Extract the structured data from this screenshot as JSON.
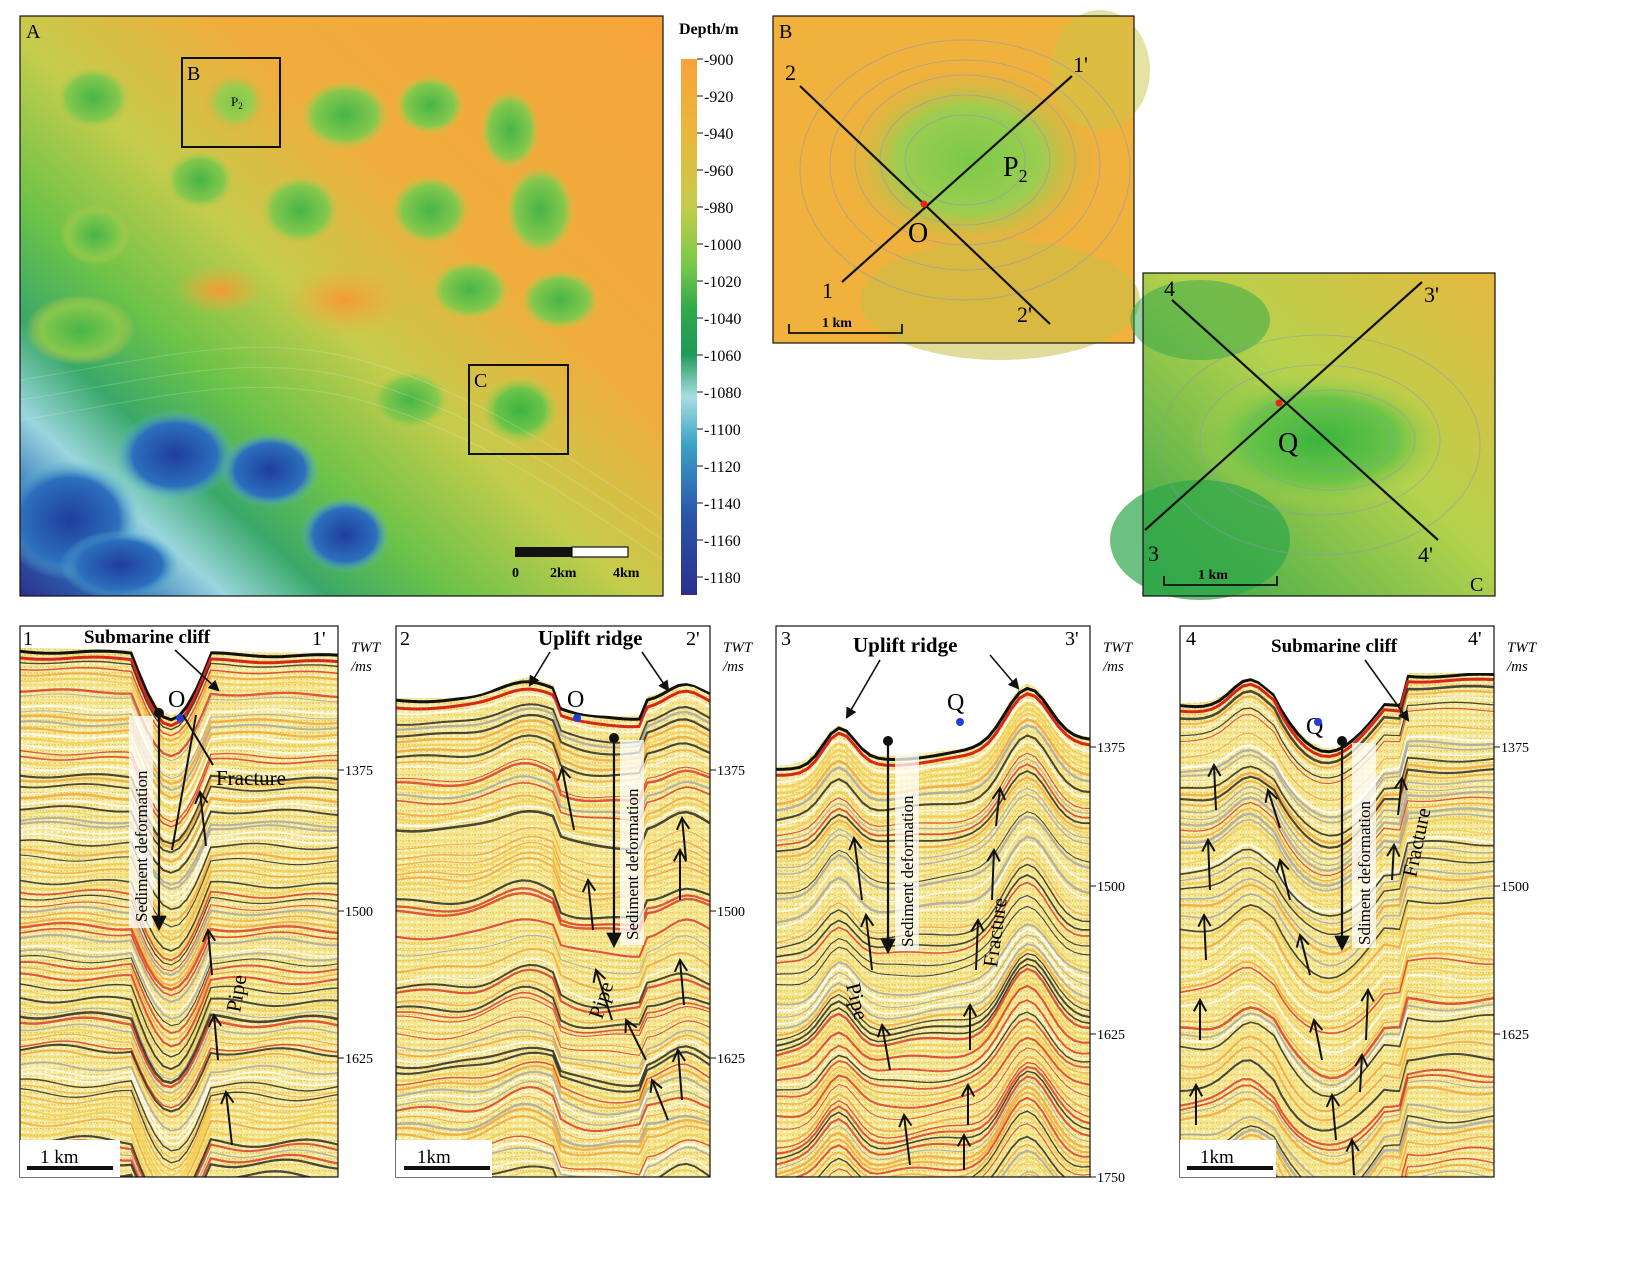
{
  "panel_a": {
    "letter": "A",
    "box_b_label": "B",
    "box_c_label": "C",
    "pockmark_label": "P",
    "pockmark_sub": "2",
    "scale_labels": [
      "0",
      "2km",
      "4km"
    ]
  },
  "colorbar": {
    "title": "Depth/m",
    "ticks": [
      "-900",
      "-920",
      "-940",
      "-960",
      "-980",
      "-1000",
      "-1020",
      "-1040",
      "-1060",
      "-1080",
      "-1100",
      "-1120",
      "-1140",
      "-1160",
      "-1180"
    ],
    "colors": [
      "#f6a43a",
      "#f2ad3b",
      "#e8b83e",
      "#d8c245",
      "#c2cc4a",
      "#a4d04e",
      "#7cc94a",
      "#4fbb44",
      "#2fa84a",
      "#33a78a",
      "#59b9c4",
      "#3aa3c6",
      "#2d7fc0",
      "#2a55ab",
      "#2b2f8e"
    ]
  },
  "panel_b": {
    "letter": "B",
    "line_labels": [
      "1",
      "1'",
      "2",
      "2'"
    ],
    "center": "O",
    "pockmark_label": "P",
    "pockmark_sub": "2",
    "scale_label": "1 km"
  },
  "panel_c": {
    "letter": "C",
    "line_labels": [
      "3",
      "3'",
      "4",
      "4'"
    ],
    "center": "Q",
    "scale_label": "1 km"
  },
  "profiles": [
    {
      "start": "1",
      "end": "1'",
      "point": "O",
      "title": "Submarine cliff",
      "labels": [
        "Fracture",
        "Pipe"
      ],
      "deformation": "Sediment deformation",
      "twt": [
        "1375",
        "1500",
        "1625"
      ],
      "scale": "1 km"
    },
    {
      "start": "2",
      "end": "2'",
      "point": "O",
      "title": "Uplift ridge",
      "labels": [
        "Pipe"
      ],
      "deformation": "Sediment deformation",
      "twt": [
        "1375",
        "1500",
        "1625"
      ],
      "scale": "1km"
    },
    {
      "start": "3",
      "end": "3'",
      "point": "Q",
      "title": "Uplift ridge",
      "labels": [
        "Fracture",
        "Pipe"
      ],
      "deformation": "Sediment deformation",
      "twt": [
        "1375",
        "1500",
        "1625",
        "1750"
      ],
      "scale": "1km"
    },
    {
      "start": "4",
      "end": "4'",
      "point": "Q",
      "title": "Submarine cliff",
      "labels": [
        "Fracture"
      ],
      "deformation": "Sdiment deformation",
      "twt": [
        "1375",
        "1500",
        "1625"
      ],
      "scale": "1km"
    }
  ],
  "twt_axis_title": "TWT",
  "twt_axis_unit": "/ms"
}
